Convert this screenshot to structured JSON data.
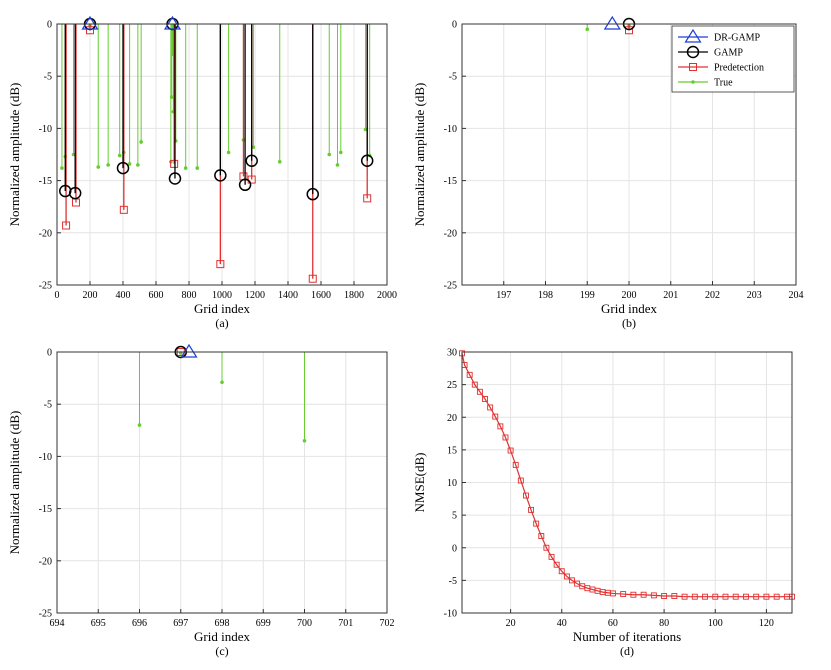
{
  "legend_labels": [
    "True",
    "Predetection",
    "GAMP",
    "DR-GAMP"
  ],
  "colors": {
    "true": "#1f3fd6",
    "pre": "#000000",
    "gamp": "#66cc33",
    "dr": "#e03030",
    "grid": "#e4e4e4"
  },
  "chart_data": [
    {
      "type": "stem",
      "caption": "(a)",
      "xlabel": "Grid index",
      "ylabel": "Normalized amplitude (dB)",
      "xlim": [
        0,
        2000
      ],
      "ylim": [
        -25,
        0
      ],
      "xticks": [
        0,
        200,
        400,
        600,
        800,
        1000,
        1200,
        1400,
        1600,
        1800,
        2000
      ],
      "yticks": [
        0,
        -5,
        -10,
        -15,
        -20,
        -25
      ],
      "grid": true,
      "series": [
        {
          "key": "true",
          "marker": "triangle",
          "points": [
            [
              200,
              0
            ],
            [
              700,
              0
            ]
          ]
        },
        {
          "key": "pre",
          "marker": "circle",
          "points": [
            [
              50,
              -16
            ],
            [
              110,
              -16.2
            ],
            [
              200,
              0
            ],
            [
              400,
              -13.8
            ],
            [
              700,
              0
            ],
            [
              715,
              -14.8
            ],
            [
              990,
              -14.5
            ],
            [
              1140,
              -15.4
            ],
            [
              1180,
              -13.1
            ],
            [
              1550,
              -16.3
            ],
            [
              1880,
              -13.1
            ]
          ]
        },
        {
          "key": "gamp",
          "marker": "dot",
          "points": [
            [
              30,
              -13.8
            ],
            [
              50,
              -12.7
            ],
            [
              100,
              -12.5
            ],
            [
              200,
              -0.2
            ],
            [
              250,
              -13.7
            ],
            [
              310,
              -13.5
            ],
            [
              380,
              -12.6
            ],
            [
              405,
              -12.3
            ],
            [
              440,
              -13.4
            ],
            [
              490,
              -13.5
            ],
            [
              510,
              -11.3
            ],
            [
              690,
              -13.2
            ],
            [
              695,
              -7
            ],
            [
              700,
              -2.9
            ],
            [
              705,
              -8.4
            ],
            [
              720,
              -11.2
            ],
            [
              780,
              -13.8
            ],
            [
              850,
              -13.8
            ],
            [
              1040,
              -12.3
            ],
            [
              1130,
              -11.1
            ],
            [
              1190,
              -11.8
            ],
            [
              1350,
              -13.2
            ],
            [
              1650,
              -12.5
            ],
            [
              1700,
              -13.5
            ],
            [
              1720,
              -12.3
            ],
            [
              1870,
              -10.1
            ],
            [
              1895,
              -12.6
            ]
          ]
        },
        {
          "key": "dr",
          "marker": "square",
          "points": [
            [
              55,
              -19.3
            ],
            [
              115,
              -17.1
            ],
            [
              200,
              -0.6
            ],
            [
              405,
              -17.8
            ],
            [
              710,
              -13.4
            ],
            [
              990,
              -23
            ],
            [
              1130,
              -14.6
            ],
            [
              1180,
              -14.9
            ],
            [
              1550,
              -24.4
            ],
            [
              1880,
              -16.7
            ]
          ]
        }
      ]
    },
    {
      "type": "stem",
      "caption": "(b)",
      "xlabel": "Grid index",
      "ylabel": "Normalized amplitude (dB)",
      "xlim": [
        196,
        204
      ],
      "ylim": [
        -25,
        0
      ],
      "xticks": [
        197,
        198,
        199,
        200,
        201,
        202,
        203,
        204
      ],
      "yticks": [
        0,
        -5,
        -10,
        -15,
        -20,
        -25
      ],
      "grid": true,
      "legend": "top-right",
      "series": [
        {
          "key": "true",
          "marker": "triangle",
          "points": [
            [
              199.6,
              0
            ]
          ]
        },
        {
          "key": "pre",
          "marker": "circle",
          "points": [
            [
              200,
              0
            ]
          ]
        },
        {
          "key": "gamp",
          "marker": "dot",
          "points": [
            [
              199,
              -0.5
            ],
            [
              200,
              -0.2
            ]
          ]
        },
        {
          "key": "dr",
          "marker": "square",
          "points": [
            [
              200,
              -0.6
            ]
          ]
        }
      ]
    },
    {
      "type": "stem",
      "caption": "(c)",
      "xlabel": "Grid index",
      "ylabel": "Normalized amplitude (dB)",
      "xlim": [
        694,
        702
      ],
      "ylim": [
        -25,
        0
      ],
      "xticks": [
        694,
        695,
        696,
        697,
        698,
        699,
        700,
        701,
        702
      ],
      "yticks": [
        0,
        -5,
        -10,
        -15,
        -20,
        -25
      ],
      "grid": true,
      "series": [
        {
          "key": "true",
          "marker": "triangle",
          "points": [
            [
              697.2,
              0
            ]
          ]
        },
        {
          "key": "pre",
          "marker": "circle",
          "points": [
            [
              697,
              0
            ]
          ]
        },
        {
          "key": "gamp",
          "marker": "dot",
          "points": [
            [
              696,
              -7
            ],
            [
              697,
              -0.1
            ],
            [
              698,
              -2.9
            ],
            [
              700,
              -8.5
            ]
          ]
        },
        {
          "key": "dr",
          "marker": "square",
          "points": [
            [
              697,
              0
            ]
          ]
        }
      ]
    },
    {
      "type": "line",
      "caption": "(d)",
      "xlabel": "Number of iterations",
      "ylabel": "NMSE(dB)",
      "xlim": [
        1,
        130
      ],
      "ylim": [
        -10,
        30
      ],
      "xticks": [
        20,
        40,
        60,
        80,
        100,
        120
      ],
      "yticks": [
        30,
        25,
        20,
        15,
        10,
        5,
        0,
        -5,
        -10
      ],
      "grid": true,
      "series": [
        {
          "key": "dr",
          "marker": "square",
          "x": [
            1,
            2,
            4,
            6,
            8,
            10,
            12,
            14,
            16,
            18,
            20,
            22,
            24,
            26,
            28,
            30,
            32,
            34,
            36,
            38,
            40,
            42,
            44,
            46,
            48,
            50,
            52,
            54,
            56,
            58,
            60,
            64,
            68,
            72,
            76,
            80,
            84,
            88,
            92,
            96,
            100,
            104,
            108,
            112,
            116,
            120,
            124,
            128,
            130
          ],
          "y": [
            29.8,
            28,
            26.5,
            25,
            23.9,
            22.8,
            21.5,
            20.1,
            18.6,
            16.9,
            14.9,
            12.7,
            10.3,
            8,
            5.8,
            3.7,
            1.8,
            0,
            -1.4,
            -2.6,
            -3.6,
            -4.4,
            -5,
            -5.5,
            -5.9,
            -6.2,
            -6.4,
            -6.6,
            -6.8,
            -6.9,
            -7,
            -7.1,
            -7.2,
            -7.2,
            -7.3,
            -7.4,
            -7.4,
            -7.5,
            -7.5,
            -7.5,
            -7.5,
            -7.5,
            -7.5,
            -7.5,
            -7.5,
            -7.5,
            -7.5,
            -7.5,
            -7.5
          ]
        }
      ]
    }
  ]
}
